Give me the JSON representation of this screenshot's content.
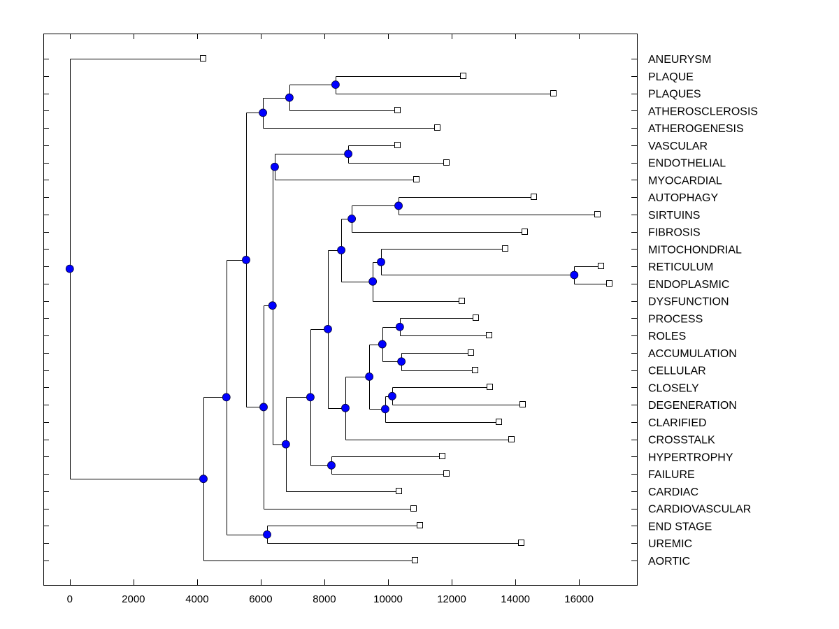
{
  "chart_data": {
    "type": "dendrogram",
    "title": "",
    "xlabel": "",
    "ylabel": "",
    "orientation": "horizontal",
    "xlim": [
      -830,
      17820
    ],
    "xticks": [
      0,
      2000,
      4000,
      6000,
      8000,
      10000,
      12000,
      14000,
      16000
    ],
    "xtick_labels": [
      "0",
      "2000",
      "4000",
      "6000",
      "8000",
      "10000",
      "12000",
      "14000",
      "16000"
    ],
    "grid": false,
    "leaf_marker": "open-square",
    "node_marker": "filled-circle",
    "node_color": "#0000ff",
    "leaves": [
      {
        "label": "ANEURYSM",
        "value": 4200
      },
      {
        "label": "PLAQUE",
        "value": 12370
      },
      {
        "label": "PLAQUES",
        "value": 15210
      },
      {
        "label": "ATHEROSCLEROSIS",
        "value": 10310
      },
      {
        "label": "ATHEROGENESIS",
        "value": 11560
      },
      {
        "label": "VASCULAR",
        "value": 10310
      },
      {
        "label": "ENDOTHELIAL",
        "value": 11850
      },
      {
        "label": "MYOCARDIAL",
        "value": 10900
      },
      {
        "label": "AUTOPHAGY",
        "value": 14590
      },
      {
        "label": "SIRTUINS",
        "value": 16590
      },
      {
        "label": "FIBROSIS",
        "value": 14310
      },
      {
        "label": "MITOCHONDRIAL",
        "value": 13690
      },
      {
        "label": "RETICULUM",
        "value": 16700
      },
      {
        "label": "ENDOPLASMIC",
        "value": 16970
      },
      {
        "label": "DYSFUNCTION",
        "value": 12330
      },
      {
        "label": "PROCESS",
        "value": 12770
      },
      {
        "label": "ROLES",
        "value": 13190
      },
      {
        "label": "ACCUMULATION",
        "value": 12620
      },
      {
        "label": "CELLULAR",
        "value": 12750
      },
      {
        "label": "CLOSELY",
        "value": 13210
      },
      {
        "label": "DEGENERATION",
        "value": 14240
      },
      {
        "label": "CLARIFIED",
        "value": 13490
      },
      {
        "label": "CROSSTALK",
        "value": 13890
      },
      {
        "label": "HYPERTROPHY",
        "value": 11710
      },
      {
        "label": "FAILURE",
        "value": 11850
      },
      {
        "label": "CARDIAC",
        "value": 10350
      },
      {
        "label": "CARDIOVASCULAR",
        "value": 10810
      },
      {
        "label": "END STAGE",
        "value": 11010
      },
      {
        "label": "UREMIC",
        "value": 14200
      },
      {
        "label": "AORTIC",
        "value": 10860
      }
    ],
    "tree": {
      "id": "root",
      "value": 0,
      "children": [
        {
          "leaf": 0
        },
        {
          "id": "n4200",
          "value": 4200,
          "children": [
            {
              "id": "n4920",
              "value": 4920,
              "children": [
                {
                  "id": "n5540",
                  "value": 5540,
                  "children": [
                    {
                      "id": "n6070",
                      "value": 6070,
                      "children": [
                        {
                          "id": "n6900",
                          "value": 6900,
                          "children": [
                            {
                              "id": "n8350",
                              "value": 8350,
                              "children": [
                                {
                                  "leaf": 1
                                },
                                {
                                  "leaf": 2
                                }
                              ]
                            },
                            {
                              "leaf": 3
                            }
                          ]
                        },
                        {
                          "leaf": 4
                        }
                      ]
                    },
                    {
                      "id": "n6090",
                      "value": 6090,
                      "children": [
                        {
                          "id": "n6370",
                          "value": 6370,
                          "children": [
                            {
                              "id": "n6440",
                              "value": 6440,
                              "children": [
                                {
                                  "id": "n8750",
                                  "value": 8750,
                                  "children": [
                                    {
                                      "leaf": 5
                                    },
                                    {
                                      "leaf": 6
                                    }
                                  ]
                                },
                                {
                                  "leaf": 7
                                }
                              ]
                            },
                            {
                              "id": "n6790",
                              "value": 6790,
                              "children": [
                                {
                                  "id": "n7560",
                                  "value": 7560,
                                  "children": [
                                    {
                                      "id": "n8110",
                                      "value": 8110,
                                      "children": [
                                        {
                                          "id": "n8530",
                                          "value": 8530,
                                          "children": [
                                            {
                                              "id": "n8860",
                                              "value": 8860,
                                              "children": [
                                                {
                                                  "id": "n10330",
                                                  "value": 10330,
                                                  "children": [
                                                    {
                                                      "leaf": 8
                                                    },
                                                    {
                                                      "leaf": 9
                                                    }
                                                  ]
                                                },
                                                {
                                                  "leaf": 10
                                                }
                                              ]
                                            },
                                            {
                                              "id": "n9520",
                                              "value": 9520,
                                              "children": [
                                                {
                                                  "id": "n9780",
                                                  "value": 9780,
                                                  "children": [
                                                    {
                                                      "leaf": 11
                                                    },
                                                    {
                                                      "id": "n15850",
                                                      "value": 15850,
                                                      "children": [
                                                        {
                                                          "leaf": 12
                                                        },
                                                        {
                                                          "leaf": 13
                                                        }
                                                      ]
                                                    }
                                                  ]
                                                },
                                                {
                                                  "leaf": 14
                                                }
                                              ]
                                            }
                                          ]
                                        },
                                        {
                                          "id": "n8660",
                                          "value": 8660,
                                          "children": [
                                            {
                                              "id": "n9410",
                                              "value": 9410,
                                              "children": [
                                                {
                                                  "id": "n9820",
                                                  "value": 9820,
                                                  "children": [
                                                    {
                                                      "id": "n10370",
                                                      "value": 10370,
                                                      "children": [
                                                        {
                                                          "leaf": 15
                                                        },
                                                        {
                                                          "leaf": 16
                                                        }
                                                      ]
                                                    },
                                                    {
                                                      "id": "n10420",
                                                      "value": 10420,
                                                      "children": [
                                                        {
                                                          "leaf": 17
                                                        },
                                                        {
                                                          "leaf": 18
                                                        }
                                                      ]
                                                    }
                                                  ]
                                                },
                                                {
                                                  "id": "n9910",
                                                  "value": 9910,
                                                  "children": [
                                                    {
                                                      "id": "n10130",
                                                      "value": 10130,
                                                      "children": [
                                                        {
                                                          "leaf": 19
                                                        },
                                                        {
                                                          "leaf": 20
                                                        }
                                                      ]
                                                    },
                                                    {
                                                      "leaf": 21
                                                    }
                                                  ]
                                                }
                                              ]
                                            },
                                            {
                                              "leaf": 22
                                            }
                                          ]
                                        }
                                      ]
                                    },
                                    {
                                      "id": "n8220",
                                      "value": 8220,
                                      "children": [
                                        {
                                          "leaf": 23
                                        },
                                        {
                                          "leaf": 24
                                        }
                                      ]
                                    }
                                  ]
                                },
                                {
                                  "leaf": 25
                                }
                              ]
                            }
                          ]
                        },
                        {
                          "leaf": 26
                        }
                      ]
                    }
                  ]
                },
                {
                  "id": "n6200",
                  "value": 6200,
                  "children": [
                    {
                      "leaf": 27
                    },
                    {
                      "leaf": 28
                    }
                  ]
                }
              ]
            },
            {
              "leaf": 29
            }
          ]
        }
      ]
    }
  }
}
